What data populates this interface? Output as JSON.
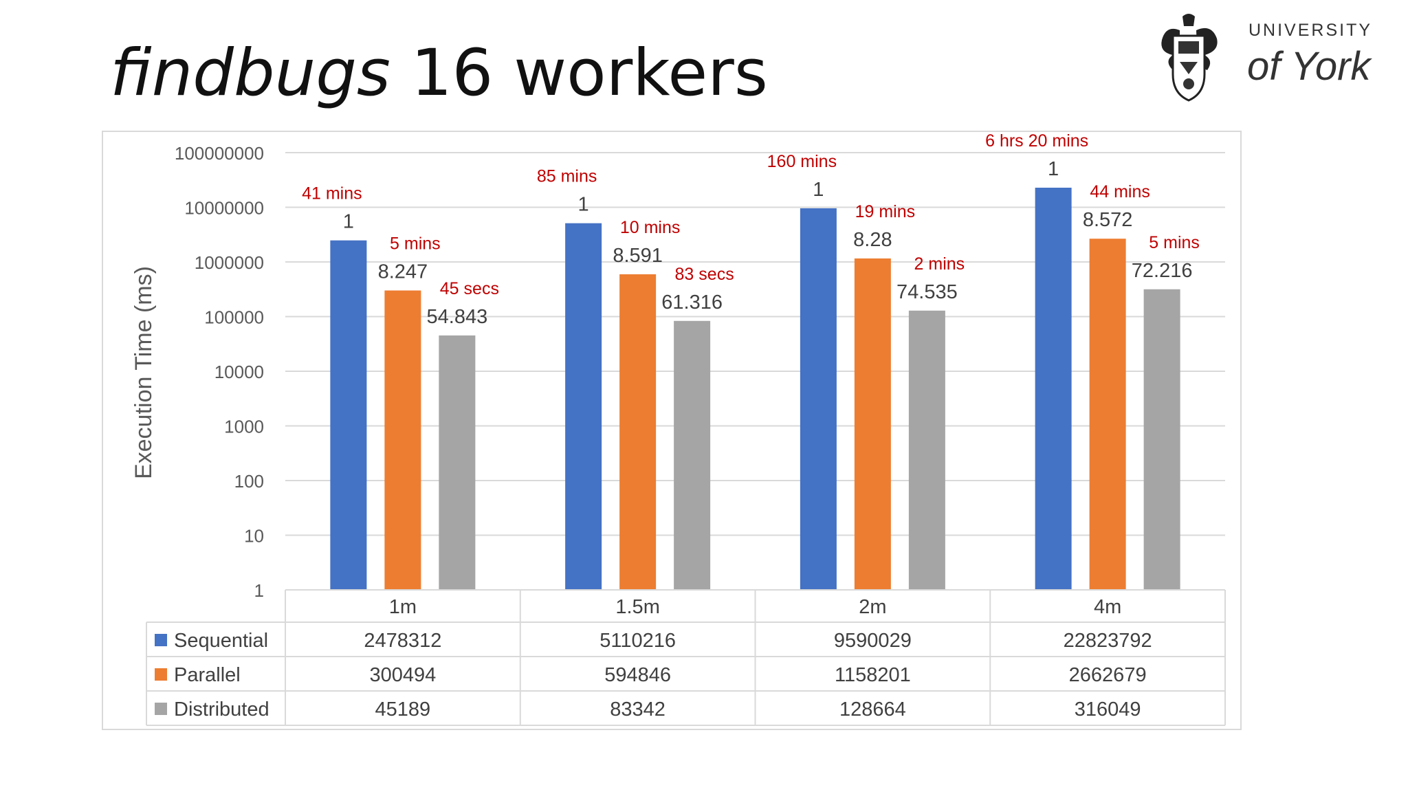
{
  "slide": {
    "title_italic": "findbugs",
    "title_rest": " 16 workers"
  },
  "logo": {
    "text_line1": "UNIVERSITY",
    "text_line2": "of York"
  },
  "chart_data": {
    "type": "bar",
    "scale": "log",
    "ylabel": "Execution Time (ms)",
    "ylim": [
      1,
      100000000
    ],
    "yticks": [
      "1",
      "10",
      "100",
      "1000",
      "10000",
      "100000",
      "1000000",
      "10000000",
      "100000000"
    ],
    "categories": [
      "1m",
      "1.5m",
      "2m",
      "4m"
    ],
    "grid": true,
    "legend": "data-table",
    "series": [
      {
        "name": "Sequential",
        "color": "#4472c4",
        "values": [
          2478312,
          5110216,
          9590029,
          22823792
        ],
        "speedups": [
          "1",
          "1",
          "1",
          "1"
        ],
        "times": [
          "41 mins",
          "85 mins",
          "160 mins",
          "6 hrs 20 mins"
        ]
      },
      {
        "name": "Parallel",
        "color": "#ed7d31",
        "values": [
          300494,
          594846,
          1158201,
          2662679
        ],
        "speedups": [
          "8.247",
          "8.591",
          "8.28",
          "8.572"
        ],
        "times": [
          "5 mins",
          "10 mins",
          "19 mins",
          "44 mins"
        ]
      },
      {
        "name": "Distributed",
        "color": "#a5a5a5",
        "values": [
          45189,
          83342,
          128664,
          316049
        ],
        "speedups": [
          "54.843",
          "61.316",
          "74.535",
          "72.216"
        ],
        "times": [
          "45 secs",
          "83 secs",
          "2 mins",
          "5 mins"
        ]
      }
    ],
    "annotation_color": "#c00000"
  }
}
